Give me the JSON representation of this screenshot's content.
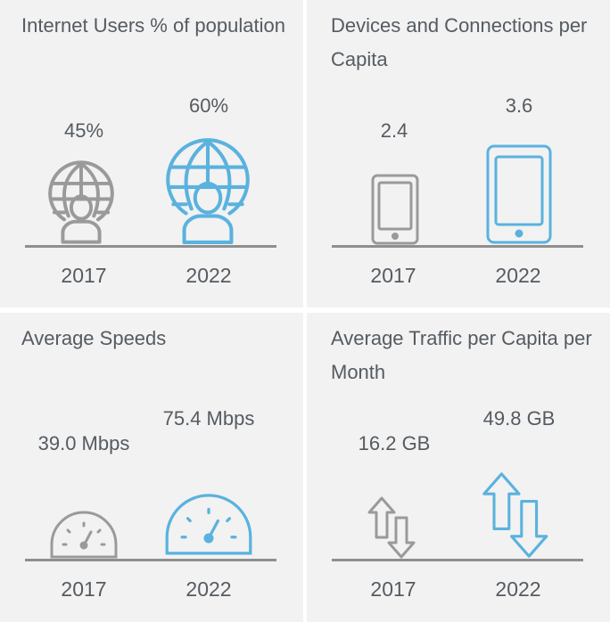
{
  "colors": {
    "muted_icon": "#9a9a9a",
    "accent_icon": "#5ab2de",
    "text": "#555b61",
    "baseline": "#8f8f8f",
    "panel_bg": "#f2f2f2"
  },
  "chart_data": [
    {
      "type": "table",
      "title": "Internet Users % of population",
      "categories": [
        "2017",
        "2022"
      ],
      "values": [
        45,
        60
      ],
      "labels": [
        "45%",
        "60%"
      ],
      "icon": "globe-user-icon"
    },
    {
      "type": "table",
      "title": "Devices and Connections per Capita",
      "categories": [
        "2017",
        "2022"
      ],
      "values": [
        2.4,
        3.6
      ],
      "labels": [
        "2.4",
        "3.6"
      ],
      "icon": "tablet-icon"
    },
    {
      "type": "table",
      "title": "Average Speeds",
      "categories": [
        "2017",
        "2022"
      ],
      "values": [
        39.0,
        75.4
      ],
      "labels": [
        "39.0 Mbps",
        "75.4 Mbps"
      ],
      "icon": "speedometer-icon"
    },
    {
      "type": "table",
      "title": "Average Traffic per Capita per Month",
      "categories": [
        "2017",
        "2022"
      ],
      "values": [
        16.2,
        49.8
      ],
      "labels": [
        "16.2 GB",
        "49.8 GB"
      ],
      "icon": "up-down-arrows-icon"
    }
  ]
}
